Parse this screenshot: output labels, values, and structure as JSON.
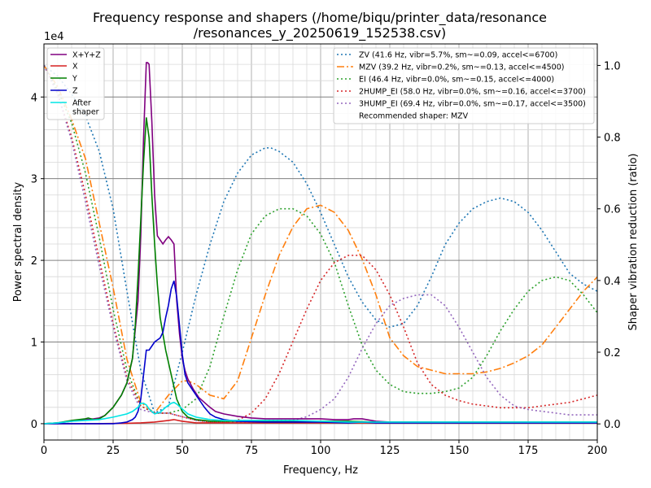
{
  "chart_data": {
    "type": "line",
    "title_lines": [
      "Frequency response and shapers (/home/biqu/printer_data/resonance",
      "/resonances_y_20250619_152538.csv)"
    ],
    "xlabel": "Frequency, Hz",
    "ylabel_left": "Power spectral density",
    "ylabel_right": "Shaper vibration reduction (ratio)",
    "left_axis_multiplier": "1e4",
    "xlim": [
      0,
      200
    ],
    "ylim_left": [
      -0.2,
      4.65
    ],
    "ylim_right": [
      -0.045,
      1.06
    ],
    "x_ticks": [
      0,
      25,
      50,
      75,
      100,
      125,
      150,
      175,
      200
    ],
    "x_tick_labels": [
      "0",
      "25",
      "50",
      "75",
      "100",
      "125",
      "150",
      "175",
      "200"
    ],
    "y_left_ticks": [
      0,
      1,
      2,
      3,
      4
    ],
    "y_left_tick_labels": [
      "0",
      "1",
      "2",
      "3",
      "4"
    ],
    "y_right_ticks": [
      0,
      0.2,
      0.4,
      0.6,
      0.8,
      1.0
    ],
    "y_right_tick_labels": [
      "0.0",
      "0.2",
      "0.4",
      "0.6",
      "0.8",
      "1.0"
    ],
    "grid": true,
    "legend_left_placement": "upper-left",
    "legend_right_placement": "upper-right",
    "psd_series": [
      {
        "name": "X+Y+Z",
        "color": "#800080",
        "x": [
          0,
          5,
          10,
          15,
          18,
          20,
          22,
          25,
          28,
          30,
          32,
          34,
          35,
          36,
          37,
          37.5,
          38,
          39,
          40,
          41,
          42,
          43,
          44,
          45,
          46,
          47,
          48,
          49,
          50,
          51,
          52,
          54,
          56,
          58,
          60,
          62,
          65,
          70,
          75,
          80,
          85,
          90,
          95,
          100,
          105,
          110,
          112,
          115,
          120,
          125,
          130,
          140,
          150,
          160,
          170,
          180,
          190,
          200
        ],
        "y": [
          0,
          0.01,
          0.03,
          0.05,
          0.06,
          0.07,
          0.1,
          0.2,
          0.35,
          0.5,
          0.8,
          1.5,
          2.3,
          3.5,
          4.42,
          4.42,
          4.4,
          3.7,
          2.8,
          2.3,
          2.25,
          2.2,
          2.25,
          2.29,
          2.25,
          2.2,
          1.5,
          1.1,
          0.8,
          0.65,
          0.55,
          0.42,
          0.32,
          0.26,
          0.2,
          0.15,
          0.12,
          0.09,
          0.07,
          0.06,
          0.06,
          0.06,
          0.06,
          0.06,
          0.05,
          0.05,
          0.06,
          0.06,
          0.03,
          0.02,
          0.02,
          0.02,
          0.01,
          0.01,
          0.01,
          0.01,
          0.01,
          0.01
        ]
      },
      {
        "name": "X",
        "color": "#d62020",
        "x": [
          0,
          10,
          20,
          30,
          35,
          40,
          45,
          47,
          50,
          55,
          60,
          70,
          80,
          90,
          100,
          110,
          120,
          130,
          140,
          150,
          160,
          170,
          180,
          190,
          200
        ],
        "y": [
          0,
          0,
          0,
          0.005,
          0.01,
          0.02,
          0.04,
          0.05,
          0.03,
          0.01,
          0.01,
          0.01,
          0.01,
          0.01,
          0.01,
          0.01,
          0.01,
          0.01,
          0.01,
          0.01,
          0.01,
          0.01,
          0.01,
          0.01,
          0.01
        ]
      },
      {
        "name": "Y",
        "color": "#008000",
        "x": [
          0,
          5,
          10,
          15,
          16,
          18,
          20,
          22,
          25,
          28,
          30,
          32,
          33,
          34,
          35,
          36,
          37,
          38,
          39,
          40,
          41,
          42,
          43,
          44,
          45,
          46,
          47,
          48,
          50,
          52,
          55,
          58,
          60,
          65,
          70,
          75,
          80,
          90,
          100,
          110,
          120,
          130,
          140,
          150,
          160,
          170,
          180,
          190,
          200
        ],
        "y": [
          0,
          0.01,
          0.04,
          0.06,
          0.07,
          0.05,
          0.06,
          0.1,
          0.2,
          0.35,
          0.5,
          0.8,
          1.2,
          1.8,
          2.5,
          3.2,
          3.75,
          3.5,
          2.8,
          2.2,
          1.7,
          1.3,
          1.1,
          0.9,
          0.75,
          0.6,
          0.45,
          0.3,
          0.15,
          0.08,
          0.05,
          0.04,
          0.03,
          0.03,
          0.03,
          0.03,
          0.03,
          0.03,
          0.03,
          0.03,
          0.02,
          0.02,
          0.02,
          0.02,
          0.02,
          0.02,
          0.02,
          0.02,
          0.02
        ]
      },
      {
        "name": "Z",
        "color": "#0000cc",
        "x": [
          0,
          10,
          20,
          25,
          28,
          30,
          32,
          33,
          34,
          35,
          36,
          37,
          38,
          39,
          40,
          42,
          43,
          44,
          45,
          46,
          47,
          48,
          49,
          50,
          51,
          52,
          54,
          56,
          58,
          60,
          62,
          65,
          70,
          80,
          90,
          100,
          110,
          115,
          120,
          130,
          140,
          150,
          160,
          170,
          180,
          190,
          200
        ],
        "y": [
          0,
          0,
          0,
          0,
          0.01,
          0.02,
          0.05,
          0.08,
          0.15,
          0.3,
          0.6,
          0.9,
          0.9,
          0.95,
          1.0,
          1.05,
          1.12,
          1.3,
          1.45,
          1.65,
          1.75,
          1.55,
          1.2,
          0.85,
          0.6,
          0.5,
          0.4,
          0.3,
          0.2,
          0.12,
          0.08,
          0.05,
          0.03,
          0.02,
          0.02,
          0.02,
          0.01,
          0.02,
          0.01,
          0.01,
          0.01,
          0.01,
          0.01,
          0.01,
          0.01,
          0.01,
          0.01
        ]
      },
      {
        "name": "After\nshaper",
        "color": "#00e5e5",
        "x": [
          0,
          5,
          10,
          15,
          20,
          25,
          30,
          32,
          34,
          35,
          36,
          37,
          38,
          40,
          42,
          44,
          46,
          47,
          48,
          50,
          52,
          55,
          60,
          65,
          70,
          80,
          90,
          100,
          110,
          120,
          130,
          140,
          150,
          160,
          170,
          180,
          190,
          200
        ],
        "y": [
          0,
          0.01,
          0.03,
          0.04,
          0.05,
          0.08,
          0.12,
          0.15,
          0.2,
          0.25,
          0.25,
          0.23,
          0.18,
          0.12,
          0.14,
          0.2,
          0.25,
          0.26,
          0.24,
          0.18,
          0.12,
          0.08,
          0.05,
          0.04,
          0.04,
          0.04,
          0.04,
          0.03,
          0.02,
          0.02,
          0.02,
          0.02,
          0.02,
          0.02,
          0.02,
          0.02,
          0.02,
          0.02
        ]
      }
    ],
    "shaper_series": [
      {
        "name": "ZV (41.6 Hz, vibr=5.7%, sm~=0.09, accel<=6700)",
        "color": "#1f77b4",
        "dash": "dotted",
        "x": [
          0,
          5,
          10,
          15,
          20,
          25,
          30,
          35,
          40,
          45,
          50,
          55,
          60,
          65,
          70,
          75,
          80,
          82,
          85,
          90,
          95,
          100,
          105,
          110,
          115,
          120,
          125,
          130,
          135,
          140,
          145,
          150,
          155,
          160,
          165,
          170,
          175,
          180,
          185,
          190,
          195,
          200
        ],
        "y": [
          1.0,
          0.97,
          0.92,
          0.86,
          0.76,
          0.6,
          0.37,
          0.15,
          0.03,
          0.05,
          0.2,
          0.36,
          0.5,
          0.62,
          0.7,
          0.75,
          0.77,
          0.77,
          0.76,
          0.73,
          0.67,
          0.59,
          0.5,
          0.41,
          0.34,
          0.29,
          0.27,
          0.28,
          0.33,
          0.41,
          0.5,
          0.56,
          0.6,
          0.62,
          0.63,
          0.62,
          0.59,
          0.54,
          0.48,
          0.42,
          0.39,
          0.37
        ]
      },
      {
        "name": "MZV (39.2 Hz, vibr=0.2%, sm~=0.13, accel<=4500)",
        "color": "#ff7f0e",
        "dash": "dashdot",
        "x": [
          0,
          5,
          10,
          15,
          20,
          25,
          30,
          35,
          40,
          45,
          50,
          52,
          55,
          60,
          65,
          70,
          75,
          80,
          85,
          90,
          95,
          100,
          105,
          110,
          115,
          120,
          125,
          130,
          135,
          140,
          145,
          150,
          155,
          160,
          165,
          170,
          175,
          180,
          185,
          190,
          195,
          200
        ],
        "y": [
          1.0,
          0.94,
          0.85,
          0.74,
          0.56,
          0.38,
          0.18,
          0.06,
          0.03,
          0.08,
          0.12,
          0.12,
          0.11,
          0.08,
          0.07,
          0.12,
          0.24,
          0.36,
          0.47,
          0.55,
          0.6,
          0.61,
          0.59,
          0.54,
          0.46,
          0.36,
          0.24,
          0.19,
          0.16,
          0.15,
          0.14,
          0.14,
          0.14,
          0.145,
          0.155,
          0.17,
          0.19,
          0.22,
          0.27,
          0.32,
          0.37,
          0.41
        ]
      },
      {
        "name": "EI (46.4 Hz, vibr=0.0%, sm~=0.15, accel<=4000)",
        "color": "#2ca02c",
        "dash": "dotted",
        "x": [
          0,
          5,
          10,
          15,
          20,
          25,
          30,
          35,
          40,
          45,
          50,
          55,
          60,
          65,
          70,
          75,
          80,
          85,
          90,
          95,
          100,
          105,
          110,
          115,
          120,
          125,
          130,
          135,
          140,
          145,
          150,
          155,
          160,
          165,
          170,
          175,
          180,
          185,
          190,
          195,
          200
        ],
        "y": [
          1.0,
          0.93,
          0.84,
          0.7,
          0.52,
          0.32,
          0.15,
          0.05,
          0.03,
          0.03,
          0.04,
          0.07,
          0.16,
          0.3,
          0.43,
          0.53,
          0.58,
          0.6,
          0.6,
          0.58,
          0.53,
          0.45,
          0.33,
          0.22,
          0.15,
          0.11,
          0.09,
          0.085,
          0.085,
          0.09,
          0.1,
          0.13,
          0.19,
          0.26,
          0.32,
          0.37,
          0.4,
          0.41,
          0.4,
          0.36,
          0.31
        ]
      },
      {
        "name": "2HUMP_EI (58.0 Hz, vibr=0.0%, sm~=0.16, accel<=3700)",
        "color": "#d62728",
        "dash": "dotted",
        "x": [
          0,
          5,
          10,
          15,
          20,
          25,
          30,
          35,
          40,
          45,
          50,
          55,
          60,
          65,
          70,
          75,
          80,
          85,
          90,
          95,
          100,
          105,
          110,
          112,
          115,
          120,
          125,
          130,
          135,
          140,
          145,
          150,
          155,
          160,
          165,
          170,
          175,
          180,
          185,
          190,
          195,
          200
        ],
        "y": [
          1.0,
          0.92,
          0.8,
          0.64,
          0.46,
          0.28,
          0.13,
          0.05,
          0.03,
          0.03,
          0.02,
          0.01,
          0.005,
          0.005,
          0.01,
          0.03,
          0.07,
          0.14,
          0.23,
          0.32,
          0.4,
          0.45,
          0.47,
          0.47,
          0.47,
          0.43,
          0.36,
          0.27,
          0.17,
          0.11,
          0.08,
          0.065,
          0.055,
          0.05,
          0.045,
          0.045,
          0.045,
          0.05,
          0.055,
          0.06,
          0.07,
          0.08
        ]
      },
      {
        "name": "3HUMP_EI (69.4 Hz, vibr=0.0%, sm~=0.17, accel<=3500)",
        "color": "#9467bd",
        "dash": "dotted",
        "x": [
          0,
          5,
          10,
          15,
          20,
          25,
          30,
          35,
          40,
          45,
          50,
          55,
          60,
          65,
          70,
          75,
          80,
          85,
          90,
          95,
          100,
          105,
          110,
          115,
          120,
          125,
          130,
          135,
          140,
          145,
          150,
          155,
          160,
          165,
          170,
          175,
          180,
          185,
          190,
          195,
          200
        ],
        "y": [
          1.0,
          0.92,
          0.79,
          0.62,
          0.44,
          0.27,
          0.12,
          0.04,
          0.03,
          0.03,
          0.02,
          0.01,
          0.005,
          0.005,
          0.005,
          0.005,
          0.01,
          0.01,
          0.01,
          0.02,
          0.04,
          0.07,
          0.13,
          0.21,
          0.28,
          0.33,
          0.35,
          0.36,
          0.36,
          0.33,
          0.27,
          0.2,
          0.13,
          0.08,
          0.05,
          0.04,
          0.035,
          0.03,
          0.025,
          0.025,
          0.025
        ]
      }
    ],
    "recommended_shaper": "Recommended shaper: MZV"
  }
}
